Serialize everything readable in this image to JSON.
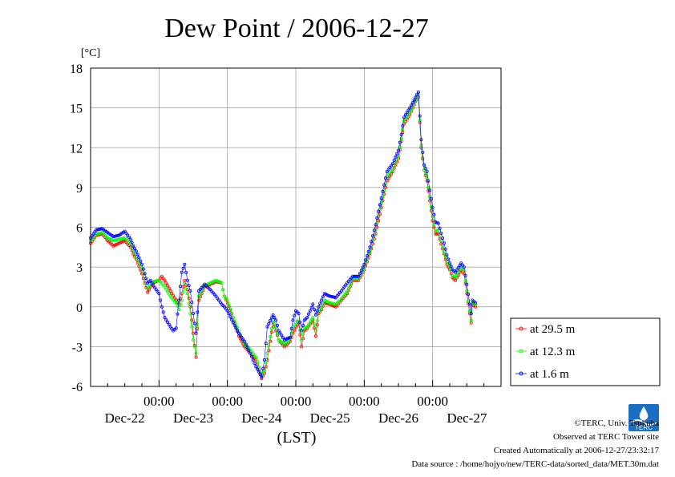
{
  "title": "Dew Point / 2006-12-27",
  "y_unit": "[°C]",
  "x_axis_label": "(LST)",
  "credits": {
    "copyright": "©TERC, Univ. Tsukuba",
    "observed": "Observed at TERC Tower site",
    "created": "Created Automatically at 2006-12-27/23:32:17",
    "source": "Data source : /home/hojyo/new/TERC-data/sorted_data/MET.30m.dat"
  },
  "logo_text": "TERC",
  "chart_data": {
    "type": "line",
    "title": "Dew Point / 2006-12-27",
    "ylabel": "[°C]",
    "xlabel": "(LST)",
    "ylim": [
      -6,
      18
    ],
    "yticks": [
      18,
      15,
      12,
      9,
      6,
      3,
      0,
      -3,
      -6
    ],
    "xlim_hours": [
      0,
      144
    ],
    "x_ticks": [
      {
        "hour": 24,
        "time": "00:00",
        "date": "Dec-23"
      },
      {
        "hour": 48,
        "time": "00:00",
        "date": "Dec-24"
      },
      {
        "hour": 72,
        "time": "00:00",
        "date": "Dec-25"
      },
      {
        "hour": 96,
        "time": "00:00",
        "date": "Dec-26"
      },
      {
        "hour": 120,
        "time": "00:00",
        "date": "Dec-27"
      }
    ],
    "date_labels": [
      {
        "hour": 12,
        "text": "Dec-22"
      },
      {
        "hour": 36,
        "text": "Dec-23"
      },
      {
        "hour": 60,
        "text": "Dec-24"
      },
      {
        "hour": 84,
        "text": "Dec-25"
      },
      {
        "hour": 108,
        "text": "Dec-26"
      },
      {
        "hour": 132,
        "text": "Dec-27"
      }
    ],
    "grid": true,
    "legend_position": "right",
    "series": [
      {
        "name": "at 29.5 m",
        "color": "#ff0000",
        "points": [
          [
            0,
            4.8
          ],
          [
            2,
            5.4
          ],
          [
            4,
            5.5
          ],
          [
            6,
            5.0
          ],
          [
            8,
            4.6
          ],
          [
            10,
            4.8
          ],
          [
            12,
            5.0
          ],
          [
            14,
            4.5
          ],
          [
            15,
            4.0
          ],
          [
            16,
            3.6
          ],
          [
            18,
            2.5
          ],
          [
            20,
            1.1
          ],
          [
            21,
            1.5
          ],
          [
            22,
            1.8
          ],
          [
            24,
            2.0
          ],
          [
            25,
            2.3
          ],
          [
            26,
            2.0
          ],
          [
            28,
            1.2
          ],
          [
            30,
            0.5
          ],
          [
            31,
            0.2
          ],
          [
            32,
            1.0
          ],
          [
            33,
            2.0
          ],
          [
            34,
            1.3
          ],
          [
            35,
            0.0
          ],
          [
            36,
            -2.0
          ],
          [
            37,
            -3.8
          ],
          [
            38,
            0.5
          ],
          [
            40,
            1.5
          ],
          [
            42,
            1.7
          ],
          [
            44,
            1.9
          ],
          [
            46,
            1.8
          ],
          [
            47,
            0.8
          ],
          [
            48,
            0.3
          ],
          [
            50,
            -0.8
          ],
          [
            52,
            -2.2
          ],
          [
            54,
            -3.0
          ],
          [
            56,
            -3.5
          ],
          [
            58,
            -4.0
          ],
          [
            60,
            -5.4
          ],
          [
            61,
            -5.0
          ],
          [
            62,
            -4.0
          ],
          [
            64,
            -1.2
          ],
          [
            65,
            -1.8
          ],
          [
            66,
            -2.5
          ],
          [
            68,
            -3.0
          ],
          [
            70,
            -2.6
          ],
          [
            71,
            -2.0
          ],
          [
            72,
            -1.5
          ],
          [
            73,
            -1.2
          ],
          [
            74,
            -3.0
          ],
          [
            75,
            -1.8
          ],
          [
            76,
            -1.6
          ],
          [
            78,
            -1.0
          ],
          [
            79,
            -2.2
          ],
          [
            80,
            -0.5
          ],
          [
            81,
            -0.2
          ],
          [
            82,
            0.3
          ],
          [
            84,
            0.2
          ],
          [
            86,
            0.0
          ],
          [
            88,
            0.5
          ],
          [
            90,
            1.0
          ],
          [
            92,
            2.0
          ],
          [
            94,
            2.0
          ],
          [
            96,
            2.8
          ],
          [
            98,
            4.0
          ],
          [
            100,
            5.5
          ],
          [
            101,
            6.5
          ],
          [
            102,
            7.5
          ],
          [
            103,
            8.5
          ],
          [
            104,
            9.5
          ],
          [
            106,
            10.2
          ],
          [
            108,
            11.2
          ],
          [
            109,
            12.5
          ],
          [
            110,
            13.8
          ],
          [
            112,
            14.5
          ],
          [
            114,
            15.5
          ],
          [
            115,
            15.8
          ],
          [
            116,
            12.0
          ],
          [
            117,
            10.3
          ],
          [
            118,
            9.5
          ],
          [
            119,
            8.0
          ],
          [
            120,
            6.5
          ],
          [
            121,
            5.5
          ],
          [
            122,
            5.5
          ],
          [
            124,
            4.0
          ],
          [
            125,
            3.2
          ],
          [
            126,
            2.8
          ],
          [
            127,
            2.2
          ],
          [
            128,
            2.0
          ],
          [
            130,
            2.8
          ],
          [
            131,
            2.5
          ],
          [
            132,
            1.0
          ],
          [
            133,
            -0.5
          ],
          [
            133.5,
            -1.2
          ],
          [
            134,
            0.2
          ],
          [
            135,
            0.0
          ]
        ]
      },
      {
        "name": "at 12.3 m",
        "color": "#00ff00",
        "points": [
          [
            0,
            5.0
          ],
          [
            2,
            5.5
          ],
          [
            4,
            5.6
          ],
          [
            6,
            5.2
          ],
          [
            8,
            5.0
          ],
          [
            10,
            5.1
          ],
          [
            12,
            5.2
          ],
          [
            14,
            4.8
          ],
          [
            15,
            4.3
          ],
          [
            16,
            3.8
          ],
          [
            18,
            2.8
          ],
          [
            20,
            1.4
          ],
          [
            21,
            1.6
          ],
          [
            22,
            1.9
          ],
          [
            24,
            2.0
          ],
          [
            25,
            1.8
          ],
          [
            26,
            1.5
          ],
          [
            28,
            0.8
          ],
          [
            30,
            0.3
          ],
          [
            31,
            -0.2
          ],
          [
            32,
            0.5
          ],
          [
            33,
            1.8
          ],
          [
            34,
            1.0
          ],
          [
            35,
            -0.5
          ],
          [
            36,
            -2.5
          ],
          [
            37,
            -3.5
          ],
          [
            38,
            0.8
          ],
          [
            40,
            1.6
          ],
          [
            42,
            1.8
          ],
          [
            44,
            2.0
          ],
          [
            46,
            1.8
          ],
          [
            47,
            0.8
          ],
          [
            48,
            0.5
          ],
          [
            50,
            -0.8
          ],
          [
            52,
            -1.8
          ],
          [
            54,
            -2.8
          ],
          [
            56,
            -3.2
          ],
          [
            58,
            -3.8
          ],
          [
            60,
            -5.2
          ],
          [
            61,
            -4.8
          ],
          [
            62,
            -3.5
          ],
          [
            64,
            -1.0
          ],
          [
            65,
            -1.5
          ],
          [
            66,
            -2.5
          ],
          [
            68,
            -2.8
          ],
          [
            70,
            -2.5
          ],
          [
            71,
            -1.5
          ],
          [
            72,
            -1.2
          ],
          [
            73,
            -1.0
          ],
          [
            74,
            -2.5
          ],
          [
            75,
            -1.6
          ],
          [
            76,
            -1.5
          ],
          [
            78,
            -0.8
          ],
          [
            79,
            -1.8
          ],
          [
            80,
            -0.3
          ],
          [
            81,
            0.0
          ],
          [
            82,
            0.5
          ],
          [
            84,
            0.3
          ],
          [
            86,
            0.2
          ],
          [
            88,
            0.6
          ],
          [
            90,
            1.2
          ],
          [
            92,
            2.1
          ],
          [
            94,
            2.1
          ],
          [
            96,
            3.0
          ],
          [
            98,
            4.2
          ],
          [
            100,
            5.8
          ],
          [
            101,
            6.8
          ],
          [
            102,
            7.8
          ],
          [
            103,
            8.8
          ],
          [
            104,
            9.8
          ],
          [
            106,
            10.4
          ],
          [
            108,
            11.4
          ],
          [
            109,
            12.7
          ],
          [
            110,
            14.0
          ],
          [
            112,
            14.7
          ],
          [
            114,
            15.6
          ],
          [
            115,
            16.0
          ],
          [
            116,
            12.2
          ],
          [
            117,
            10.3
          ],
          [
            118,
            9.7
          ],
          [
            119,
            8.3
          ],
          [
            120,
            6.8
          ],
          [
            121,
            5.7
          ],
          [
            122,
            5.8
          ],
          [
            124,
            4.2
          ],
          [
            125,
            3.4
          ],
          [
            126,
            3.0
          ],
          [
            127,
            2.4
          ],
          [
            128,
            2.2
          ],
          [
            130,
            3.0
          ],
          [
            131,
            2.7
          ],
          [
            132,
            1.2
          ],
          [
            133,
            -0.3
          ],
          [
            133.5,
            -1.0
          ],
          [
            134,
            0.3
          ],
          [
            135,
            0.2
          ]
        ]
      },
      {
        "name": "at 1.6 m",
        "color": "#0000ff",
        "points": [
          [
            0,
            5.2
          ],
          [
            2,
            5.8
          ],
          [
            4,
            5.9
          ],
          [
            6,
            5.6
          ],
          [
            8,
            5.3
          ],
          [
            10,
            5.4
          ],
          [
            12,
            5.7
          ],
          [
            14,
            5.1
          ],
          [
            15,
            4.6
          ],
          [
            16,
            4.2
          ],
          [
            18,
            3.2
          ],
          [
            20,
            1.8
          ],
          [
            21,
            2.0
          ],
          [
            22,
            1.6
          ],
          [
            24,
            1.0
          ],
          [
            25,
            0.0
          ],
          [
            26,
            -0.8
          ],
          [
            28,
            -1.5
          ],
          [
            29,
            -1.8
          ],
          [
            30,
            -1.6
          ],
          [
            31,
            0.5
          ],
          [
            32,
            2.6
          ],
          [
            33,
            3.2
          ],
          [
            34,
            2.0
          ],
          [
            35,
            1.2
          ],
          [
            36,
            -0.5
          ],
          [
            37,
            -2.0
          ],
          [
            38,
            1.2
          ],
          [
            40,
            1.7
          ],
          [
            42,
            1.3
          ],
          [
            44,
            0.8
          ],
          [
            46,
            0.2
          ],
          [
            47,
            0.0
          ],
          [
            48,
            -0.3
          ],
          [
            50,
            -1.2
          ],
          [
            52,
            -2.0
          ],
          [
            54,
            -2.6
          ],
          [
            56,
            -3.5
          ],
          [
            58,
            -4.5
          ],
          [
            60,
            -5.3
          ],
          [
            61,
            -4.0
          ],
          [
            62,
            -1.5
          ],
          [
            64,
            -0.6
          ],
          [
            65,
            -1.0
          ],
          [
            66,
            -1.8
          ],
          [
            68,
            -2.5
          ],
          [
            70,
            -2.3
          ],
          [
            71,
            -1.0
          ],
          [
            72,
            -0.3
          ],
          [
            73,
            -0.5
          ],
          [
            74,
            -1.8
          ],
          [
            75,
            -1.0
          ],
          [
            76,
            -0.8
          ],
          [
            78,
            0.2
          ],
          [
            79,
            -0.6
          ],
          [
            80,
            0.0
          ],
          [
            81,
            0.5
          ],
          [
            82,
            1.0
          ],
          [
            84,
            0.8
          ],
          [
            86,
            0.7
          ],
          [
            88,
            1.2
          ],
          [
            90,
            1.8
          ],
          [
            92,
            2.3
          ],
          [
            94,
            2.3
          ],
          [
            96,
            3.2
          ],
          [
            98,
            4.5
          ],
          [
            100,
            6.2
          ],
          [
            101,
            7.2
          ],
          [
            102,
            8.2
          ],
          [
            103,
            9.2
          ],
          [
            104,
            10.2
          ],
          [
            106,
            10.8
          ],
          [
            108,
            11.8
          ],
          [
            109,
            13.0
          ],
          [
            110,
            14.3
          ],
          [
            112,
            15.0
          ],
          [
            114,
            15.8
          ],
          [
            115,
            16.2
          ],
          [
            116,
            12.6
          ],
          [
            117,
            10.7
          ],
          [
            118,
            10.2
          ],
          [
            119,
            8.8
          ],
          [
            120,
            7.5
          ],
          [
            121,
            6.4
          ],
          [
            122,
            6.3
          ],
          [
            124,
            4.8
          ],
          [
            125,
            3.9
          ],
          [
            126,
            3.3
          ],
          [
            127,
            2.8
          ],
          [
            128,
            2.6
          ],
          [
            130,
            3.3
          ],
          [
            131,
            3.0
          ],
          [
            132,
            1.7
          ],
          [
            133,
            0.2
          ],
          [
            133.5,
            -0.5
          ],
          [
            134,
            0.5
          ],
          [
            135,
            0.3
          ]
        ]
      }
    ]
  }
}
